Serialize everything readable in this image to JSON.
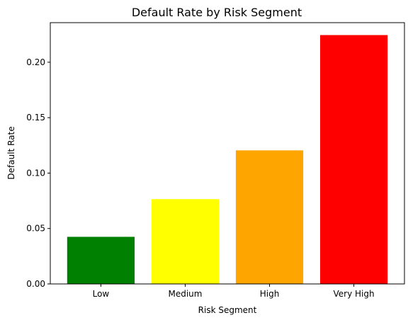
{
  "chart_data": {
    "type": "bar",
    "title": "Default Rate by Risk Segment",
    "xlabel": "Risk Segment",
    "ylabel": "Default Rate",
    "categories": [
      "Low",
      "Medium",
      "High",
      "Very High"
    ],
    "values": [
      0.0425,
      0.0765,
      0.1205,
      0.2245
    ],
    "colors": [
      "#008000",
      "#ffff00",
      "#ffa500",
      "#ff0000"
    ],
    "ylim": [
      0,
      0.2357
    ],
    "yticks": [
      0.0,
      0.05,
      0.1,
      0.15,
      0.2
    ],
    "ytick_labels": [
      "0.00",
      "0.05",
      "0.10",
      "0.15",
      "0.20"
    ],
    "grid": false,
    "legend": false
  }
}
